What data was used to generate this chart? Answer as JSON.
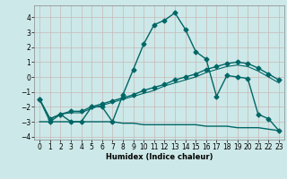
{
  "xlabel": "Humidex (Indice chaleur)",
  "xlim": [
    -0.5,
    23.5
  ],
  "ylim": [
    -4.2,
    4.8
  ],
  "yticks": [
    -4,
    -3,
    -2,
    -1,
    0,
    1,
    2,
    3,
    4
  ],
  "xticks": [
    0,
    1,
    2,
    3,
    4,
    5,
    6,
    7,
    8,
    9,
    10,
    11,
    12,
    13,
    14,
    15,
    16,
    17,
    18,
    19,
    20,
    21,
    22,
    23
  ],
  "background_color": "#cde8e8",
  "grid_color": "#c8b8b8",
  "line_color": "#006666",
  "series": [
    {
      "x": [
        0,
        1,
        2,
        3,
        4,
        5,
        6,
        7,
        8,
        9,
        10,
        11,
        12,
        13,
        14,
        15,
        16,
        17,
        18,
        19,
        20,
        21,
        22,
        23
      ],
      "y": [
        -1.5,
        -3.0,
        -2.5,
        -3.0,
        -3.0,
        -2.0,
        -2.0,
        -3.0,
        -1.2,
        0.5,
        2.2,
        3.5,
        3.8,
        4.3,
        3.2,
        1.7,
        1.2,
        -1.3,
        0.1,
        0.0,
        -0.1,
        -2.5,
        -2.8,
        -3.6
      ],
      "marker": "D",
      "marker_size": 2.5,
      "linewidth": 1.0
    },
    {
      "x": [
        0,
        1,
        2,
        3,
        4,
        5,
        6,
        7,
        8,
        9,
        10,
        11,
        12,
        13,
        14,
        15,
        16,
        17,
        18,
        19,
        20,
        21,
        22,
        23
      ],
      "y": [
        -1.5,
        -2.8,
        -2.5,
        -2.3,
        -2.3,
        -2.0,
        -1.8,
        -1.6,
        -1.4,
        -1.2,
        -0.9,
        -0.7,
        -0.5,
        -0.2,
        0.0,
        0.2,
        0.5,
        0.7,
        0.9,
        1.0,
        0.9,
        0.6,
        0.2,
        -0.2
      ],
      "marker": "D",
      "marker_size": 2.5,
      "linewidth": 1.0
    },
    {
      "x": [
        0,
        1,
        2,
        3,
        4,
        5,
        6,
        7,
        8,
        9,
        10,
        11,
        12,
        13,
        14,
        15,
        16,
        17,
        18,
        19,
        20,
        21,
        22,
        23
      ],
      "y": [
        -1.5,
        -2.8,
        -2.5,
        -2.4,
        -2.4,
        -2.1,
        -1.9,
        -1.7,
        -1.5,
        -1.3,
        -1.1,
        -0.9,
        -0.6,
        -0.4,
        -0.2,
        0.0,
        0.3,
        0.5,
        0.7,
        0.8,
        0.7,
        0.4,
        0.0,
        -0.4
      ],
      "marker": null,
      "marker_size": 0,
      "linewidth": 0.8
    },
    {
      "x": [
        0,
        1,
        2,
        3,
        4,
        5,
        6,
        7,
        8,
        9,
        10,
        11,
        12,
        13,
        14,
        15,
        16,
        17,
        18,
        19,
        20,
        21,
        22,
        23
      ],
      "y": [
        -3.0,
        -3.0,
        -3.0,
        -3.0,
        -3.0,
        -3.0,
        -3.0,
        -3.0,
        -3.1,
        -3.1,
        -3.2,
        -3.2,
        -3.2,
        -3.2,
        -3.2,
        -3.2,
        -3.3,
        -3.3,
        -3.3,
        -3.4,
        -3.4,
        -3.4,
        -3.5,
        -3.6
      ],
      "marker": null,
      "marker_size": 0,
      "linewidth": 1.0
    }
  ]
}
